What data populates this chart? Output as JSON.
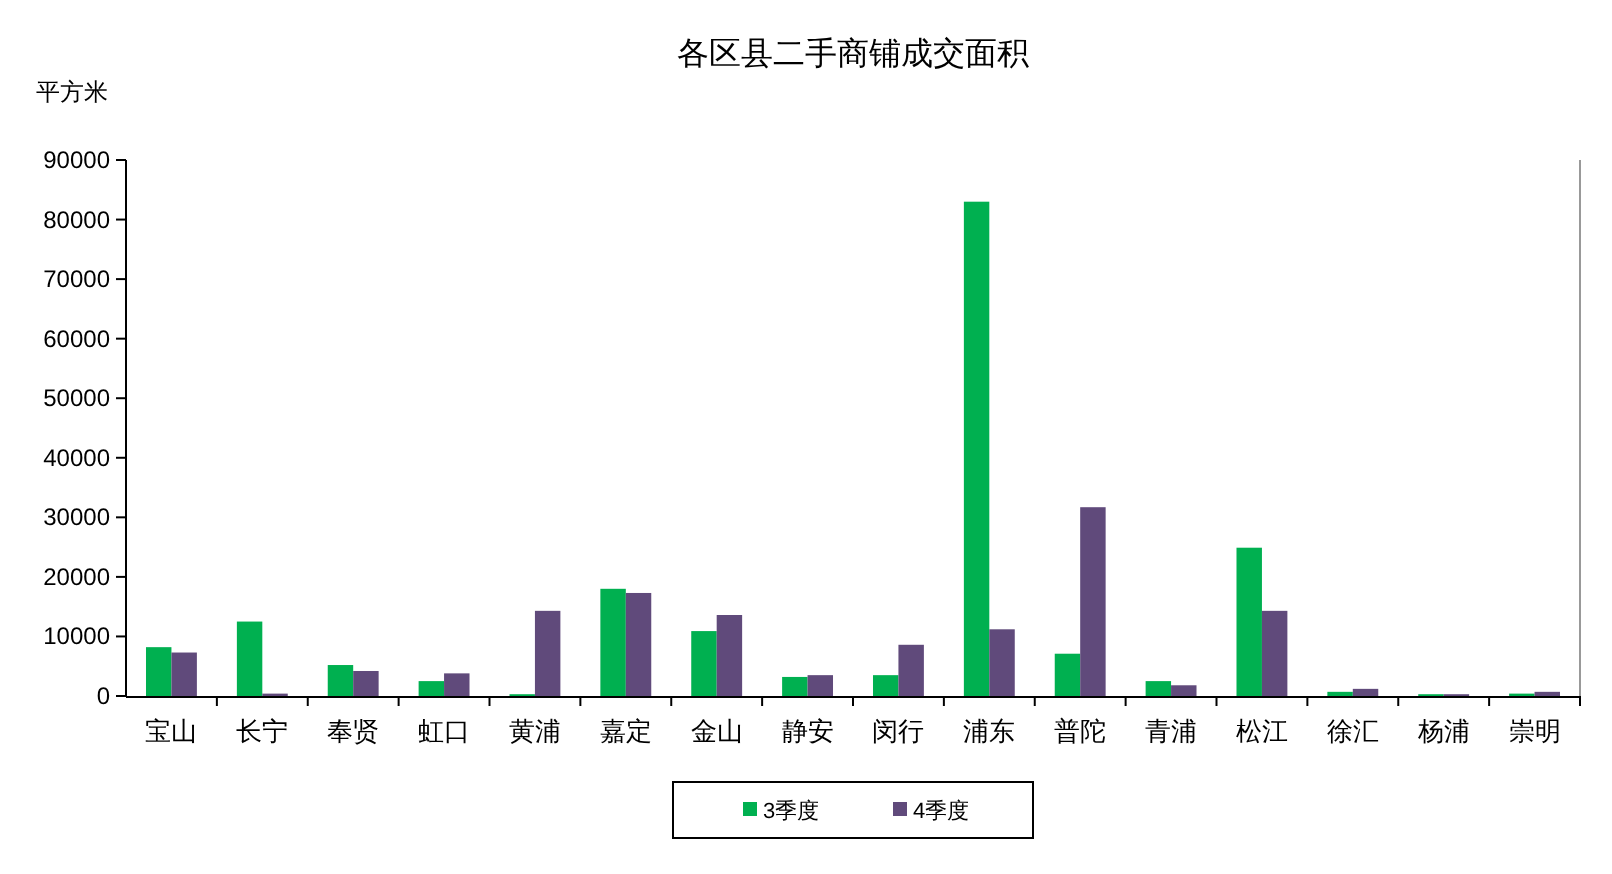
{
  "chart_data": {
    "type": "bar",
    "title": "各区县二手商铺成交面积",
    "ylabel": "平方米",
    "categories": [
      "宝山",
      "长宁",
      "奉贤",
      "虹口",
      "黄浦",
      "嘉定",
      "金山",
      "静安",
      "闵行",
      "浦东",
      "普陀",
      "青浦",
      "松江",
      "徐汇",
      "杨浦",
      "崇明"
    ],
    "series": [
      {
        "name": "3季度",
        "color": "#00b050",
        "values": [
          8200,
          12500,
          5200,
          2500,
          300,
          18000,
          10900,
          3200,
          3500,
          83000,
          7100,
          2500,
          24900,
          700,
          300,
          400
        ]
      },
      {
        "name": "4季度",
        "color": "#604a7b",
        "values": [
          7300,
          400,
          4200,
          3800,
          14300,
          17300,
          13600,
          3500,
          8600,
          11200,
          31700,
          1800,
          14300,
          1200,
          300,
          700
        ]
      }
    ],
    "ylim": [
      0,
      90000
    ],
    "yticks": [
      0,
      10000,
      20000,
      30000,
      40000,
      50000,
      60000,
      70000,
      80000,
      90000
    ],
    "grid": false,
    "legend": "bottom"
  }
}
